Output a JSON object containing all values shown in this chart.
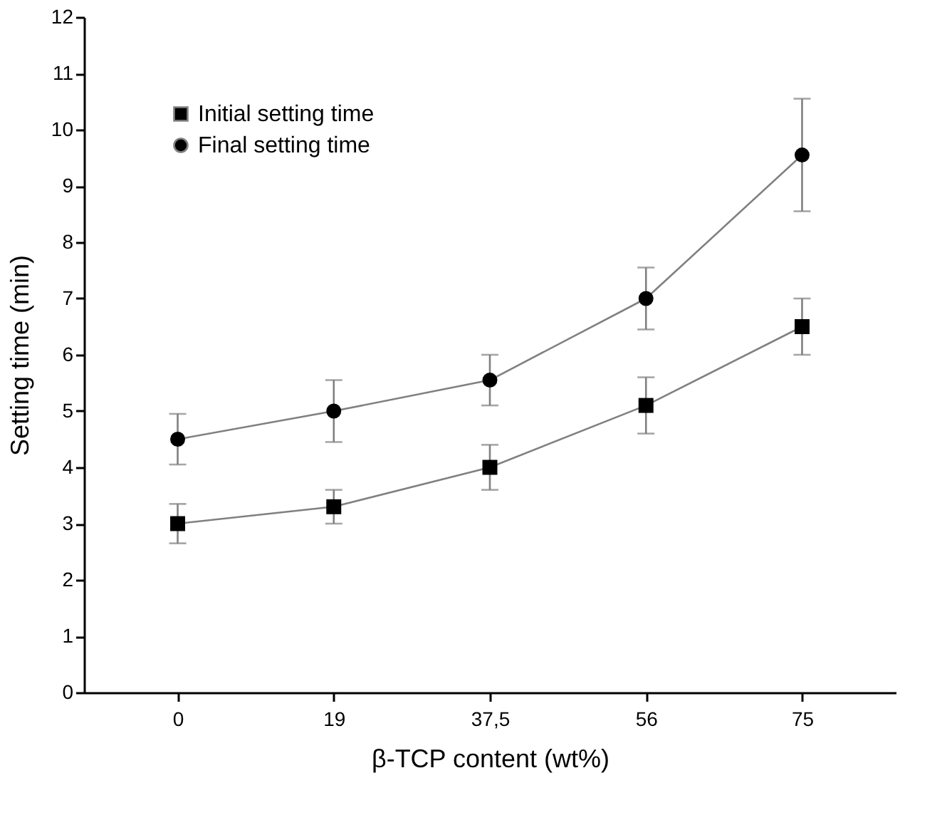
{
  "chart_data": {
    "type": "line",
    "xlabel": "β-TCP content (wt%)",
    "ylabel": "Setting time (min)",
    "categories": [
      "0",
      "19",
      "37,5",
      "56",
      "75"
    ],
    "ylim": [
      0,
      12
    ],
    "yticks": [
      0,
      1,
      2,
      3,
      4,
      5,
      6,
      7,
      8,
      9,
      10,
      11,
      12
    ],
    "grid": false,
    "legend": "top left",
    "line_style": "solid",
    "series": [
      {
        "name": "Initial setting time",
        "color": "#000000",
        "marker": "square",
        "values": [
          3.0,
          3.3,
          4.0,
          5.1,
          6.5
        ],
        "errors": [
          [
            2.65,
            3.35
          ],
          [
            3.0,
            3.6
          ],
          [
            3.6,
            4.4
          ],
          [
            4.6,
            5.6
          ],
          [
            6.0,
            7.0
          ]
        ]
      },
      {
        "name": "Final setting time",
        "color": "#000000",
        "marker": "circle",
        "values": [
          4.5,
          5.0,
          5.55,
          7.0,
          9.55
        ],
        "errors": [
          [
            4.05,
            4.95
          ],
          [
            4.45,
            5.55
          ],
          [
            5.1,
            6.0
          ],
          [
            6.45,
            7.55
          ],
          [
            8.55,
            10.55
          ]
        ]
      }
    ]
  }
}
